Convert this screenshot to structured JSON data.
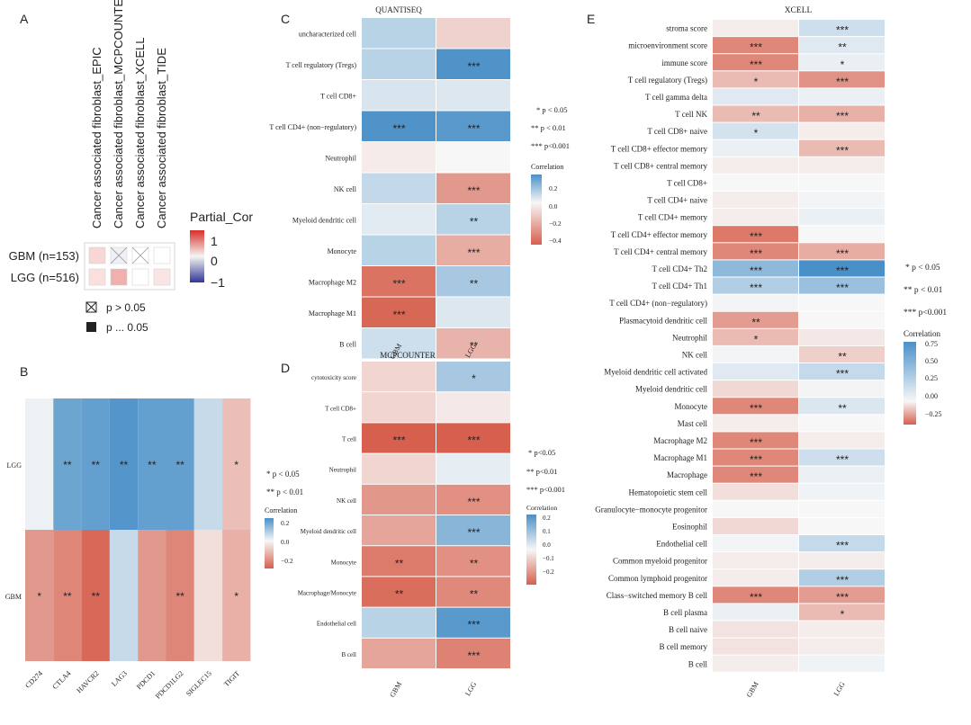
{
  "colors": {
    "neg_strong": "#d6604d",
    "neg_mid": "#ec9d8a",
    "neg_light": "#f7d9cf",
    "zero": "#f7f7f7",
    "pos_light": "#d5e0ee",
    "pos_mid": "#92b4d9",
    "pos_strong": "#4a90c8",
    "partial_pos": "#d73027",
    "partial_neg": "#313695"
  },
  "chart_data": [
    {
      "panel": "A",
      "type": "heatmap",
      "columns": [
        "Cancer associated fibroblast_EPIC",
        "Cancer associated fibroblast_MCPCOUNTER",
        "Cancer associated fibroblast_XCELL",
        "Cancer associated fibroblast_TIDE"
      ],
      "rows": [
        "GBM (n=153)",
        "LGG (n=516)"
      ],
      "values": [
        [
          0.08,
          -0.03,
          0.0,
          0.0
        ],
        [
          0.06,
          0.15,
          0.0,
          0.05
        ]
      ],
      "crossed": [
        [
          false,
          true,
          true,
          false
        ],
        [
          false,
          false,
          false,
          false
        ]
      ],
      "legend_title": "Partial_Cor",
      "legend_ticks": [
        "1",
        "0",
        "−1"
      ],
      "key": [
        {
          "symbol": "cross",
          "label": "p > 0.05"
        },
        {
          "symbol": "square",
          "label": "p ... 0.05"
        }
      ]
    },
    {
      "panel": "B",
      "type": "heatmap",
      "columns": [
        "CD274",
        "CTLA4",
        "HAVCR2",
        "LAG3",
        "PDCD1",
        "PDCD1LG2",
        "SIGLEC15",
        "TIGIT"
      ],
      "rows": [
        "LGG",
        "GBM"
      ],
      "values": [
        [
          0.02,
          0.28,
          0.3,
          0.33,
          0.3,
          0.3,
          0.1,
          -0.12
        ],
        [
          -0.2,
          -0.24,
          -0.3,
          0.1,
          -0.2,
          -0.24,
          -0.05,
          -0.15
        ]
      ],
      "stars": [
        [
          "",
          "**",
          "**",
          "**",
          "**",
          "**",
          "",
          "*"
        ],
        [
          "*",
          "**",
          "**",
          "",
          "",
          "**",
          "",
          "*"
        ]
      ],
      "legend_title": "Correlation",
      "legend_ticks": [
        "0.2",
        "0.0",
        "−0.2"
      ],
      "sig_key": [
        "* p < 0.05",
        "** p < 0.01"
      ]
    },
    {
      "panel": "C",
      "title": "QUANTISEQ",
      "type": "heatmap",
      "columns": [
        "GBM",
        "LGG"
      ],
      "rows": [
        "uncharacterized cell",
        "T cell regulatory (Tregs)",
        "T cell CD8+",
        "T cell CD4+ (non−regulatory)",
        "Neutrophil",
        "NK cell",
        "Myeloid dendritic cell",
        "Monocyte",
        "Macrophage M2",
        "Macrophage M1",
        "B cell"
      ],
      "values": [
        [
          0.12,
          -0.1
        ],
        [
          0.12,
          0.32
        ],
        [
          0.06,
          0.05
        ],
        [
          0.32,
          0.3
        ],
        [
          -0.03,
          0.0
        ],
        [
          0.1,
          -0.25
        ],
        [
          0.04,
          0.12
        ],
        [
          0.12,
          -0.2
        ],
        [
          -0.35,
          0.15
        ],
        [
          -0.38,
          0.05
        ],
        [
          0.08,
          -0.18
        ]
      ],
      "stars": [
        [
          "",
          ""
        ],
        [
          "",
          "***"
        ],
        [
          "",
          ""
        ],
        [
          "***",
          "***"
        ],
        [
          "",
          ""
        ],
        [
          "",
          "***"
        ],
        [
          "",
          "**"
        ],
        [
          "",
          "***"
        ],
        [
          "***",
          "**"
        ],
        [
          "***",
          ""
        ],
        [
          "",
          "**"
        ]
      ],
      "legend_title": "Correlation",
      "legend_ticks": [
        "0.2",
        "0.0",
        "−0.2",
        "−0.4"
      ],
      "sig_key": [
        "* p < 0.05",
        "** p < 0.01",
        "*** p<0.001"
      ]
    },
    {
      "panel": "D",
      "title": "MCPCOUNTER",
      "type": "heatmap",
      "columns": [
        "GBM",
        "LGG"
      ],
      "rows": [
        "cytotoxicity score",
        "T cell CD8+",
        "T cell",
        "Neutrophil",
        "NK cell",
        "Myeloid dendritic cell",
        "Monocyte",
        "Macrophage/Monocyte",
        "Endothelial cell",
        "B cell"
      ],
      "values": [
        [
          -0.05,
          0.1
        ],
        [
          -0.05,
          -0.02
        ],
        [
          -0.22,
          -0.22
        ],
        [
          -0.05,
          0.02
        ],
        [
          -0.14,
          -0.15
        ],
        [
          -0.12,
          0.14
        ],
        [
          -0.18,
          -0.15
        ],
        [
          -0.2,
          -0.16
        ],
        [
          0.08,
          0.2
        ],
        [
          -0.12,
          -0.17
        ]
      ],
      "stars": [
        [
          "",
          "*"
        ],
        [
          "",
          ""
        ],
        [
          "***",
          "***"
        ],
        [
          "",
          ""
        ],
        [
          "",
          "***"
        ],
        [
          "",
          "***"
        ],
        [
          "**",
          "**"
        ],
        [
          "**",
          "**"
        ],
        [
          "",
          "***"
        ],
        [
          "",
          "***"
        ]
      ],
      "legend_title": "Correlation",
      "legend_ticks": [
        "0.2",
        "0.1",
        "0.0",
        "−0.1",
        "−0.2"
      ],
      "sig_key": [
        "* p<0.05",
        "** p<0.01",
        "*** p<0.001"
      ]
    },
    {
      "panel": "E",
      "title": "XCELL",
      "type": "heatmap",
      "columns": [
        "GBM",
        "LGG"
      ],
      "rows": [
        "stroma score",
        "microenvironment score",
        "immune score",
        "T cell regulatory (Tregs)",
        "T cell gamma delta",
        "T cell NK",
        "T cell CD8+ naive",
        "T cell CD8+ effector memory",
        "T cell CD8+ central memory",
        "T cell CD8+",
        "T cell CD4+ naive",
        "T cell CD4+ memory",
        "T cell CD4+ effector memory",
        "T cell CD4+ central memory",
        "T cell CD4+ Th2",
        "T cell CD4+ Th1",
        "T cell CD4+ (non−regulatory)",
        "Plasmacytoid dendritic cell",
        "Neutrophil",
        "NK cell",
        "Myeloid dendritic cell activated",
        "Myeloid dendritic cell",
        "Monocyte",
        "Mast cell",
        "Macrophage M2",
        "Macrophage M1",
        "Macrophage",
        "Hematopoietic stem cell",
        "Granulocyte−monocyte progenitor",
        "Eosinophil",
        "Endothelial cell",
        "Common myeloid progenitor",
        "Common lymphoid progenitor",
        "Class−switched memory B cell",
        "B cell plasma",
        "B cell naive",
        "B cell memory",
        "B cell"
      ],
      "values": [
        [
          -0.02,
          0.18
        ],
        [
          -0.22,
          0.1
        ],
        [
          -0.22,
          0.06
        ],
        [
          -0.12,
          -0.2
        ],
        [
          0.1,
          0.05
        ],
        [
          -0.12,
          -0.14
        ],
        [
          0.15,
          -0.02
        ],
        [
          0.05,
          -0.12
        ],
        [
          -0.02,
          -0.02
        ],
        [
          0.0,
          0.0
        ],
        [
          -0.02,
          0.02
        ],
        [
          -0.02,
          0.05
        ],
        [
          -0.25,
          0.0
        ],
        [
          -0.22,
          -0.15
        ],
        [
          0.45,
          0.75
        ],
        [
          0.3,
          0.4
        ],
        [
          0.02,
          0.0
        ],
        [
          -0.18,
          0.0
        ],
        [
          -0.12,
          -0.03
        ],
        [
          0.02,
          -0.08
        ],
        [
          0.1,
          0.22
        ],
        [
          -0.06,
          0.02
        ],
        [
          -0.22,
          0.12
        ],
        [
          -0.02,
          0.0
        ],
        [
          -0.22,
          -0.02
        ],
        [
          -0.22,
          0.18
        ],
        [
          -0.22,
          0.05
        ],
        [
          -0.05,
          0.03
        ],
        [
          0.0,
          0.0
        ],
        [
          -0.06,
          0.0
        ],
        [
          0.02,
          0.22
        ],
        [
          -0.02,
          -0.02
        ],
        [
          -0.02,
          0.3
        ],
        [
          -0.22,
          -0.18
        ],
        [
          0.05,
          -0.12
        ],
        [
          -0.04,
          -0.02
        ],
        [
          -0.04,
          -0.02
        ],
        [
          -0.02,
          0.03
        ]
      ],
      "stars": [
        [
          "",
          "***"
        ],
        [
          "***",
          "**"
        ],
        [
          "***",
          "*"
        ],
        [
          "*",
          "***"
        ],
        [
          "",
          ""
        ],
        [
          "**",
          "***"
        ],
        [
          "*",
          ""
        ],
        [
          "",
          "***"
        ],
        [
          "",
          ""
        ],
        [
          "",
          ""
        ],
        [
          "",
          ""
        ],
        [
          "",
          ""
        ],
        [
          "***",
          ""
        ],
        [
          "***",
          "***"
        ],
        [
          "***",
          "***"
        ],
        [
          "***",
          "***"
        ],
        [
          "",
          ""
        ],
        [
          "**",
          ""
        ],
        [
          "*",
          ""
        ],
        [
          "",
          "**"
        ],
        [
          "",
          "***"
        ],
        [
          "",
          ""
        ],
        [
          "***",
          "**"
        ],
        [
          "",
          ""
        ],
        [
          "***",
          ""
        ],
        [
          "***",
          "***"
        ],
        [
          "***",
          ""
        ],
        [
          "",
          ""
        ],
        [
          "",
          ""
        ],
        [
          "",
          ""
        ],
        [
          "",
          "***"
        ],
        [
          "",
          ""
        ],
        [
          "",
          "***"
        ],
        [
          "***",
          "***"
        ],
        [
          "",
          "*"
        ],
        [
          "",
          ""
        ],
        [
          "",
          ""
        ],
        [
          "",
          ""
        ]
      ],
      "legend_title": "Correlation",
      "legend_ticks": [
        "0.75",
        "0.50",
        "0.25",
        "0.00",
        "−0.25"
      ],
      "sig_key": [
        "* p < 0.05",
        "** p < 0.01",
        "*** p<0.001"
      ]
    }
  ]
}
